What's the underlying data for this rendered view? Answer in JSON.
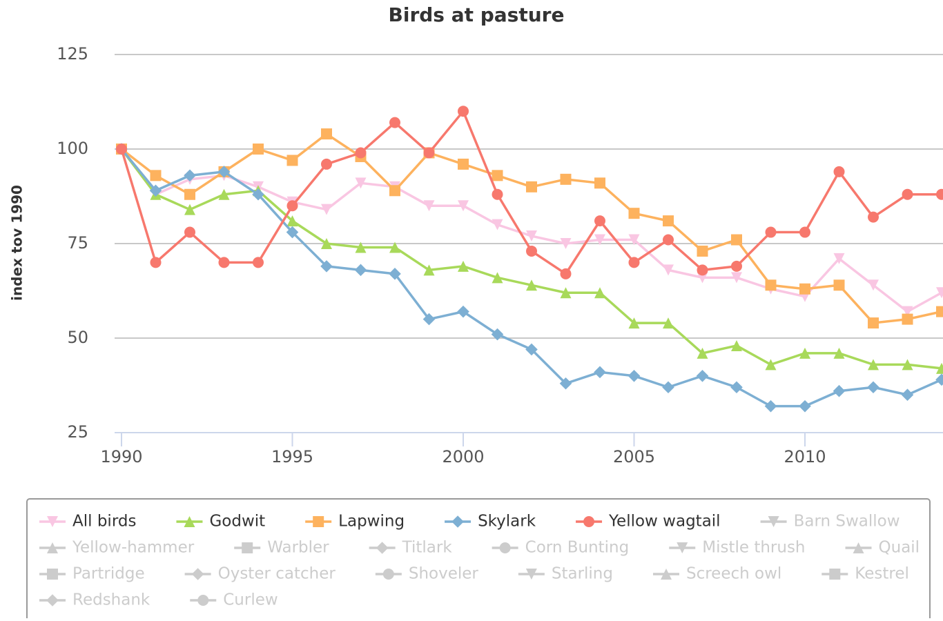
{
  "chart_data": {
    "type": "line",
    "title": "Birds at pasture",
    "y_label": "index tov 1990",
    "x": [
      1990,
      1991,
      1992,
      1993,
      1994,
      1995,
      1996,
      1997,
      1998,
      1999,
      2000,
      2001,
      2002,
      2003,
      2004,
      2005,
      2006,
      2007,
      2008,
      2009,
      2010,
      2011,
      2012,
      2013,
      2014
    ],
    "xlim": [
      1990,
      2014
    ],
    "xticks": [
      1990,
      1995,
      2000,
      2005,
      2010
    ],
    "ylim": [
      25,
      125
    ],
    "yticks": [
      25,
      50,
      75,
      100,
      125
    ],
    "grid": true,
    "legend": "bottom",
    "series": [
      {
        "name": "All birds",
        "color": "#f9c6e2",
        "marker": "triangle-down",
        "visible": true,
        "values": [
          100,
          88,
          92,
          93,
          90,
          86,
          84,
          91,
          90,
          85,
          85,
          80,
          77,
          75,
          76,
          76,
          68,
          66,
          66,
          63,
          61,
          71,
          64,
          57,
          62
        ]
      },
      {
        "name": "Godwit",
        "color": "#a8d95a",
        "marker": "triangle",
        "visible": true,
        "values": [
          100,
          88,
          84,
          88,
          89,
          81,
          75,
          74,
          74,
          68,
          69,
          66,
          64,
          62,
          62,
          54,
          54,
          46,
          48,
          43,
          46,
          46,
          43,
          43,
          42
        ]
      },
      {
        "name": "Lapwing",
        "color": "#fdb25e",
        "marker": "square",
        "visible": true,
        "values": [
          100,
          93,
          88,
          94,
          100,
          97,
          104,
          98,
          89,
          99,
          96,
          93,
          90,
          92,
          91,
          83,
          81,
          73,
          76,
          64,
          63,
          64,
          54,
          55,
          57
        ]
      },
      {
        "name": "Skylark",
        "color": "#7dafd3",
        "marker": "diamond",
        "visible": true,
        "values": [
          100,
          89,
          93,
          94,
          88,
          78,
          69,
          68,
          67,
          55,
          57,
          51,
          47,
          38,
          41,
          40,
          37,
          40,
          37,
          32,
          32,
          36,
          37,
          35,
          39
        ]
      },
      {
        "name": "Yellow wagtail",
        "color": "#f7786d",
        "marker": "circle",
        "visible": true,
        "values": [
          100,
          70,
          78,
          70,
          70,
          85,
          96,
          99,
          107,
          99,
          110,
          88,
          73,
          67,
          81,
          70,
          76,
          68,
          69,
          78,
          78,
          94,
          82,
          88,
          88
        ]
      },
      {
        "name": "Barn Swallow",
        "marker": "triangle-down",
        "visible": false
      },
      {
        "name": "Yellow-hammer",
        "marker": "triangle",
        "visible": false
      },
      {
        "name": "Warbler",
        "marker": "square",
        "visible": false
      },
      {
        "name": "Titlark",
        "marker": "diamond",
        "visible": false
      },
      {
        "name": "Corn Bunting",
        "marker": "circle",
        "visible": false
      },
      {
        "name": "Mistle thrush",
        "marker": "triangle-down",
        "visible": false
      },
      {
        "name": "Quail",
        "marker": "triangle",
        "visible": false
      },
      {
        "name": "Partridge",
        "marker": "square",
        "visible": false
      },
      {
        "name": "Oyster catcher",
        "marker": "diamond",
        "visible": false
      },
      {
        "name": "Shoveler",
        "marker": "circle",
        "visible": false
      },
      {
        "name": "Starling",
        "marker": "triangle-down",
        "visible": false
      },
      {
        "name": "Screech owl",
        "marker": "triangle",
        "visible": false
      },
      {
        "name": "Kestrel",
        "marker": "square",
        "visible": false
      },
      {
        "name": "Redshank",
        "marker": "diamond",
        "visible": false
      },
      {
        "name": "Curlew",
        "marker": "circle",
        "visible": false
      }
    ]
  }
}
